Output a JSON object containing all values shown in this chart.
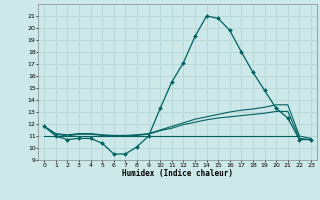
{
  "xlabel": "Humidex (Indice chaleur)",
  "bg_color": "#cce8e8",
  "grid_color": "#b8d8d8",
  "line_color": "#006060",
  "xlim": [
    -0.5,
    23.5
  ],
  "ylim": [
    9,
    22
  ],
  "xticks": [
    0,
    1,
    2,
    3,
    4,
    5,
    6,
    7,
    8,
    9,
    10,
    11,
    12,
    13,
    14,
    15,
    16,
    17,
    18,
    19,
    20,
    21,
    22,
    23
  ],
  "yticks": [
    9,
    10,
    11,
    12,
    13,
    14,
    15,
    16,
    17,
    18,
    19,
    20,
    21
  ],
  "series1_x": [
    0,
    1,
    2,
    3,
    4,
    5,
    6,
    7,
    8,
    9,
    10,
    11,
    12,
    13,
    14,
    15,
    16,
    17,
    18,
    19,
    20,
    21,
    22,
    23
  ],
  "series1_y": [
    11.8,
    11.0,
    10.7,
    10.8,
    10.8,
    10.4,
    9.5,
    9.5,
    10.1,
    11.0,
    13.3,
    15.5,
    17.1,
    19.3,
    21.0,
    20.8,
    19.8,
    18.0,
    16.3,
    14.8,
    13.3,
    12.5,
    10.7,
    10.7
  ],
  "series2_x": [
    0,
    1,
    2,
    3,
    4,
    5,
    6,
    7,
    8,
    9,
    10,
    11,
    12,
    13,
    14,
    15,
    16,
    17,
    18,
    19,
    20,
    21,
    22,
    23
  ],
  "series2_y": [
    11.8,
    11.2,
    11.1,
    11.2,
    11.2,
    11.1,
    11.05,
    11.05,
    11.1,
    11.2,
    11.5,
    11.8,
    12.1,
    12.4,
    12.6,
    12.8,
    13.0,
    13.15,
    13.25,
    13.4,
    13.6,
    13.6,
    11.0,
    10.8
  ],
  "series3_x": [
    0,
    1,
    2,
    3,
    4,
    5,
    6,
    7,
    8,
    9,
    10,
    11,
    12,
    13,
    14,
    15,
    16,
    17,
    18,
    19,
    20,
    21,
    22,
    23
  ],
  "series3_y": [
    11.8,
    11.15,
    11.0,
    11.15,
    11.15,
    11.05,
    11.0,
    11.0,
    11.05,
    11.15,
    11.45,
    11.65,
    11.95,
    12.15,
    12.35,
    12.5,
    12.6,
    12.7,
    12.8,
    12.9,
    13.05,
    13.05,
    10.8,
    10.7
  ],
  "series4_x": [
    0,
    22
  ],
  "series4_y": [
    11.0,
    11.0
  ]
}
